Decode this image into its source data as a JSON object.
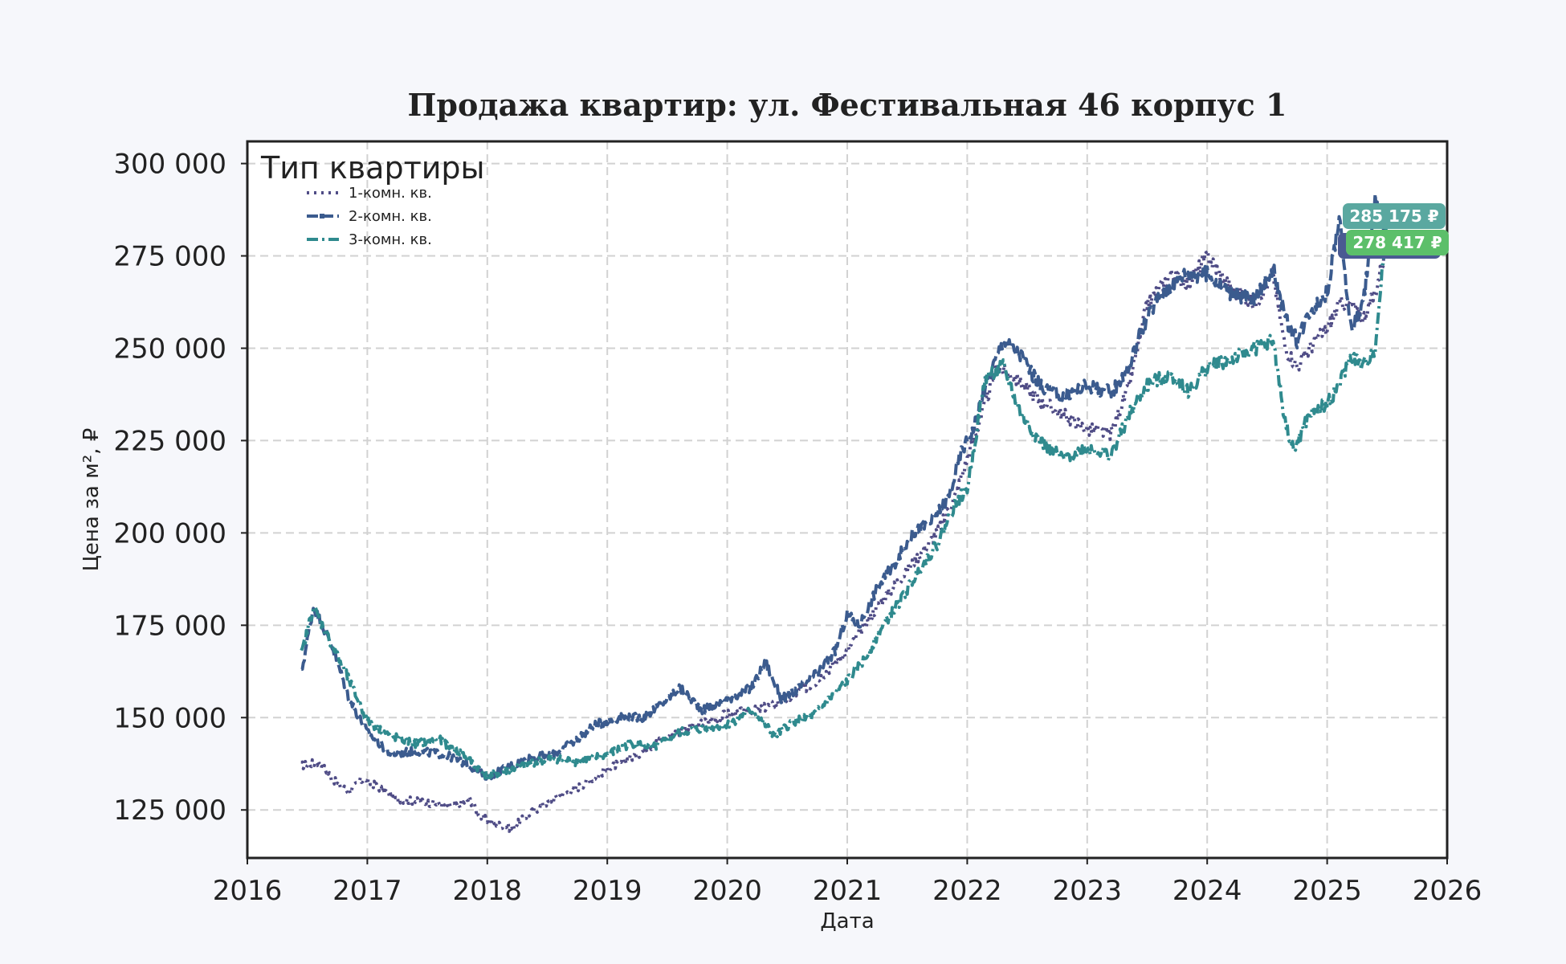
{
  "chart_data": {
    "type": "line",
    "title": "Продажа квартир: ул. Фестивальная 46 корпус 1",
    "xlabel": "Дата",
    "ylabel": "Цена за м², ₽",
    "x_ticks": [
      "2016",
      "2017",
      "2018",
      "2019",
      "2020",
      "2021",
      "2022",
      "2023",
      "2024",
      "2025",
      "2026"
    ],
    "y_ticks": [
      "125 000",
      "150 000",
      "175 000",
      "200 000",
      "225 000",
      "250 000",
      "275 000",
      "300 000"
    ],
    "xlim": [
      2016.0,
      2026.0
    ],
    "ylim": [
      112000,
      306000
    ],
    "grid": true,
    "legend": {
      "title": "Тип квартиры",
      "position": "top-left"
    },
    "series": [
      {
        "name": "1-комн. кв.",
        "color": "#4f4c86",
        "style": "dotted",
        "x": [
          2016.45,
          2016.6,
          2016.75,
          2016.85,
          2016.95,
          2017.05,
          2017.25,
          2017.5,
          2017.75,
          2017.85,
          2017.95,
          2018.1,
          2018.2,
          2018.35,
          2018.55,
          2018.75,
          2019.0,
          2019.25,
          2019.5,
          2019.75,
          2020.0,
          2020.25,
          2020.5,
          2020.75,
          2021.0,
          2021.25,
          2021.5,
          2021.75,
          2021.9,
          2022.0,
          2022.15,
          2022.25,
          2022.4,
          2022.6,
          2022.8,
          2023.0,
          2023.2,
          2023.35,
          2023.5,
          2023.7,
          2023.85,
          2024.0,
          2024.2,
          2024.4,
          2024.55,
          2024.65,
          2024.75,
          2024.9,
          2025.0,
          2025.1,
          2025.2,
          2025.3,
          2025.4,
          2025.5
        ],
        "y": [
          137000,
          138000,
          132000,
          130000,
          133000,
          132000,
          128000,
          127000,
          126000,
          128000,
          123000,
          121000,
          120000,
          124000,
          128000,
          131000,
          136000,
          140000,
          145000,
          148000,
          151000,
          152000,
          155000,
          160000,
          168000,
          180000,
          190000,
          200000,
          210000,
          220000,
          235000,
          245000,
          242000,
          236000,
          232000,
          228000,
          227000,
          240000,
          262000,
          270000,
          268000,
          275000,
          266000,
          262000,
          270000,
          250000,
          245000,
          252000,
          255000,
          262000,
          262000,
          258000,
          265000,
          278417
        ]
      },
      {
        "name": "2-комн. кв.",
        "color": "#3b5b8e",
        "style": "dashed",
        "x": [
          2016.45,
          2016.55,
          2016.7,
          2016.85,
          2017.0,
          2017.2,
          2017.4,
          2017.65,
          2017.85,
          2018.0,
          2018.2,
          2018.35,
          2018.55,
          2018.7,
          2018.9,
          2019.1,
          2019.3,
          2019.5,
          2019.6,
          2019.8,
          2020.0,
          2020.2,
          2020.32,
          2020.45,
          2020.6,
          2020.75,
          2020.9,
          2021.0,
          2021.1,
          2021.25,
          2021.4,
          2021.55,
          2021.7,
          2021.85,
          2021.95,
          2022.05,
          2022.15,
          2022.3,
          2022.45,
          2022.6,
          2022.8,
          2023.0,
          2023.2,
          2023.35,
          2023.45,
          2023.6,
          2023.8,
          2024.0,
          2024.2,
          2024.4,
          2024.55,
          2024.65,
          2024.75,
          2024.85,
          2025.0,
          2025.1,
          2025.2,
          2025.3,
          2025.4,
          2025.5
        ],
        "y": [
          162000,
          180000,
          170000,
          155000,
          146000,
          140000,
          141000,
          140000,
          137000,
          134000,
          137000,
          139000,
          140000,
          143000,
          148000,
          150000,
          150000,
          155000,
          158000,
          152000,
          155000,
          158000,
          165000,
          155000,
          158000,
          162000,
          168000,
          178000,
          175000,
          185000,
          192000,
          200000,
          203000,
          210000,
          222000,
          228000,
          240000,
          252000,
          248000,
          240000,
          237000,
          240000,
          238000,
          245000,
          255000,
          264000,
          270000,
          270000,
          265000,
          263000,
          272000,
          258000,
          252000,
          260000,
          265000,
          285000,
          255000,
          262000,
          290000,
          278417
        ]
      },
      {
        "name": "3-комн. кв.",
        "color": "#2f8a8e",
        "style": "dashdot",
        "x": [
          2016.45,
          2016.55,
          2016.7,
          2016.85,
          2017.0,
          2017.2,
          2017.4,
          2017.6,
          2017.8,
          2018.0,
          2018.2,
          2018.4,
          2018.55,
          2018.75,
          2019.0,
          2019.2,
          2019.4,
          2019.6,
          2019.8,
          2020.0,
          2020.2,
          2020.4,
          2020.55,
          2020.7,
          2020.85,
          2021.0,
          2021.15,
          2021.3,
          2021.45,
          2021.6,
          2021.75,
          2021.9,
          2022.0,
          2022.15,
          2022.3,
          2022.45,
          2022.6,
          2022.8,
          2023.0,
          2023.2,
          2023.35,
          2023.5,
          2023.7,
          2023.85,
          2024.0,
          2024.2,
          2024.4,
          2024.55,
          2024.65,
          2024.72,
          2024.85,
          2025.0,
          2025.1,
          2025.2,
          2025.3,
          2025.4,
          2025.5
        ],
        "y": [
          167000,
          180000,
          170000,
          160000,
          149000,
          145000,
          143000,
          144000,
          140000,
          134000,
          136000,
          138000,
          139000,
          138000,
          140000,
          143000,
          142000,
          146000,
          147000,
          148000,
          152000,
          145000,
          149000,
          150000,
          155000,
          160000,
          166000,
          175000,
          182000,
          190000,
          197000,
          208000,
          212000,
          242000,
          245000,
          232000,
          225000,
          220000,
          223000,
          221000,
          232000,
          240000,
          243000,
          238000,
          245000,
          247000,
          250000,
          252000,
          230000,
          222000,
          232000,
          235000,
          240000,
          248000,
          245000,
          250000,
          285175
        ]
      }
    ],
    "last_value_badges": [
      {
        "label": "285 175 ₽",
        "color": "#5aa8a0",
        "value": 285175
      },
      {
        "label": "278 417 ₽",
        "color": "#5cbf6a",
        "value": 278417
      },
      {
        "label": "",
        "color": "#4a5a92",
        "value": 278417
      }
    ]
  }
}
